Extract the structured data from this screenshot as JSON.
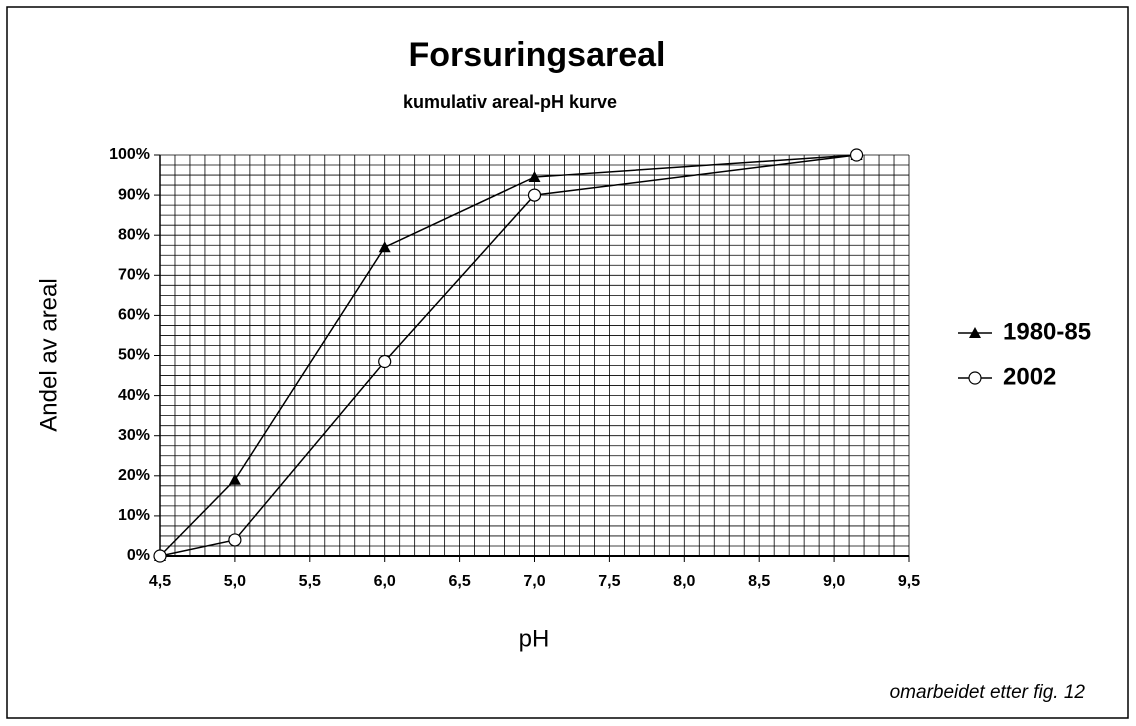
{
  "chart_data": {
    "type": "line",
    "title": "Forsuringsareal",
    "subtitle": "kumulativ areal-pH kurve",
    "x_label": "pH",
    "y_label": "Andel av areal",
    "annotation": "omarbeidet etter fig. 12",
    "xlim": [
      4.5,
      9.5
    ],
    "ylim": [
      0,
      100
    ],
    "xticks": [
      {
        "value": 4.5,
        "label": "4,5"
      },
      {
        "value": 5.0,
        "label": "5,0"
      },
      {
        "value": 5.5,
        "label": "5,5"
      },
      {
        "value": 6.0,
        "label": "6,0"
      },
      {
        "value": 6.5,
        "label": "6,5"
      },
      {
        "value": 7.0,
        "label": "7,0"
      },
      {
        "value": 7.5,
        "label": "7,5"
      },
      {
        "value": 8.0,
        "label": "8,0"
      },
      {
        "value": 8.5,
        "label": "8,5"
      },
      {
        "value": 9.0,
        "label": "9,0"
      },
      {
        "value": 9.5,
        "label": "9,5"
      }
    ],
    "yticks": [
      {
        "value": 0,
        "label": "0%"
      },
      {
        "value": 10,
        "label": "10%"
      },
      {
        "value": 20,
        "label": "20%"
      },
      {
        "value": 30,
        "label": "30%"
      },
      {
        "value": 40,
        "label": "40%"
      },
      {
        "value": 50,
        "label": "50%"
      },
      {
        "value": 60,
        "label": "60%"
      },
      {
        "value": 70,
        "label": "70%"
      },
      {
        "value": 80,
        "label": "80%"
      },
      {
        "value": 90,
        "label": "90%"
      },
      {
        "value": 100,
        "label": "100%"
      }
    ],
    "grid": true,
    "xminor": 0.1,
    "yminor": 2.5,
    "legend": "right",
    "series": [
      {
        "name": "1980-85",
        "color": "#000000",
        "marker": "triangle",
        "x": [
          4.5,
          5.0,
          6.0,
          7.0,
          9.15
        ],
        "values": [
          0,
          19,
          77,
          94.5,
          100
        ]
      },
      {
        "name": "2002",
        "color": "#000000",
        "marker": "circle",
        "x": [
          4.5,
          5.0,
          6.0,
          7.0,
          9.15
        ],
        "values": [
          0,
          4,
          48.5,
          90,
          100
        ]
      }
    ]
  }
}
